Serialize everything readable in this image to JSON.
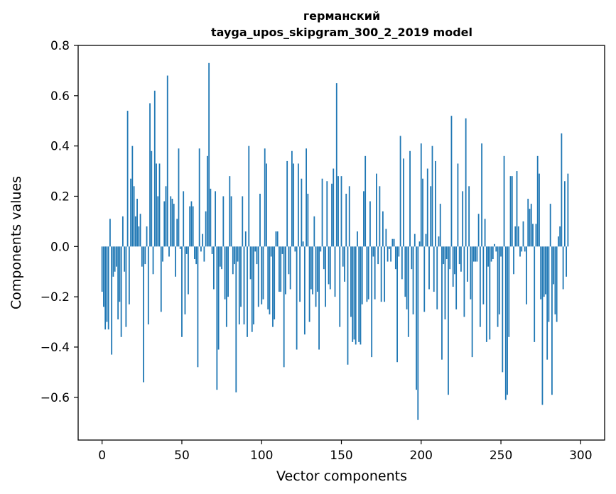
{
  "chart_data": {
    "type": "bar",
    "title": "германский",
    "subtitle": "tayga_upos_skipgram_300_2_2019 model",
    "xlabel": "Vector components",
    "ylabel": "Components values",
    "xlim": [
      -15,
      315
    ],
    "ylim": [
      -0.77,
      0.8
    ],
    "xticks": [
      0,
      50,
      100,
      150,
      200,
      250,
      300
    ],
    "xtick_labels": [
      "0",
      "50",
      "100",
      "150",
      "200",
      "250",
      "300"
    ],
    "yticks": [
      -0.6,
      -0.4,
      -0.2,
      0.0,
      0.2,
      0.4,
      0.6,
      0.8
    ],
    "ytick_labels": [
      "−0.6",
      "−0.4",
      "−0.2",
      "0.0",
      "0.2",
      "0.4",
      "0.6",
      "0.8"
    ],
    "bar_color": "#1f77b4",
    "values": [
      -0.18,
      -0.24,
      -0.33,
      -0.3,
      -0.33,
      0.11,
      -0.43,
      -0.12,
      -0.1,
      -0.08,
      -0.29,
      -0.22,
      -0.36,
      0.12,
      -0.1,
      -0.32,
      0.54,
      -0.23,
      0.27,
      0.4,
      0.24,
      0.12,
      0.19,
      0.08,
      0.13,
      -0.08,
      -0.54,
      -0.07,
      0.08,
      -0.31,
      0.57,
      0.38,
      -0.11,
      0.62,
      0.33,
      0.2,
      0.33,
      -0.26,
      -0.06,
      0.18,
      0.24,
      0.68,
      -0.04,
      0.2,
      0.19,
      0.17,
      -0.12,
      0.11,
      0.39,
      -0.01,
      -0.36,
      0.22,
      -0.27,
      -0.03,
      -0.19,
      0.16,
      0.18,
      0.16,
      -0.05,
      -0.07,
      -0.48,
      0.39,
      -0.02,
      0.05,
      -0.06,
      0.14,
      0.36,
      0.73,
      0.23,
      -0.03,
      -0.17,
      0.22,
      -0.57,
      -0.41,
      -0.08,
      -0.09,
      0.2,
      -0.21,
      -0.32,
      -0.2,
      0.28,
      0.2,
      -0.11,
      -0.07,
      -0.58,
      -0.06,
      -0.31,
      -0.24,
      0.2,
      -0.31,
      0.06,
      -0.36,
      0.4,
      -0.13,
      -0.34,
      -0.31,
      -0.02,
      -0.07,
      -0.24,
      0.21,
      -0.23,
      -0.21,
      0.39,
      0.33,
      -0.25,
      -0.27,
      -0.04,
      -0.32,
      -0.29,
      0.06,
      0.06,
      -0.18,
      -0.18,
      -0.03,
      -0.48,
      -0.19,
      0.34,
      -0.11,
      -0.17,
      0.38,
      0.33,
      -0.02,
      -0.41,
      0.33,
      -0.22,
      0.27,
      0.02,
      -0.35,
      0.39,
      0.21,
      -0.3,
      -0.17,
      -0.19,
      0.12,
      -0.24,
      -0.18,
      -0.41,
      -0.02,
      0.27,
      -0.09,
      -0.24,
      0.26,
      -0.15,
      -0.17,
      0.25,
      0.31,
      -0.2,
      0.65,
      0.28,
      -0.32,
      0.28,
      -0.08,
      -0.14,
      0.21,
      -0.47,
      0.24,
      -0.28,
      -0.38,
      -0.37,
      -0.39,
      0.06,
      -0.38,
      -0.39,
      -0.23,
      0.22,
      0.36,
      -0.22,
      -0.21,
      0.18,
      -0.44,
      -0.04,
      -0.21,
      0.29,
      -0.07,
      0.24,
      -0.22,
      0.14,
      -0.22,
      0.07,
      -0.06,
      -0.01,
      -0.06,
      0.03,
      0.03,
      -0.09,
      -0.46,
      -0.04,
      0.44,
      -0.13,
      0.35,
      -0.2,
      -0.25,
      -0.36,
      0.38,
      -0.09,
      -0.27,
      0.05,
      -0.57,
      -0.69,
      0.02,
      0.41,
      0.27,
      -0.26,
      0.05,
      0.31,
      -0.17,
      0.24,
      0.4,
      -0.18,
      0.34,
      -0.25,
      0.04,
      0.17,
      -0.45,
      -0.07,
      -0.29,
      -0.05,
      -0.59,
      -0.09,
      0.52,
      -0.16,
      -0.11,
      -0.25,
      0.33,
      -0.07,
      -0.1,
      0.22,
      -0.28,
      0.51,
      -0.14,
      0.24,
      -0.21,
      -0.44,
      -0.06,
      -0.06,
      -0.06,
      0.13,
      -0.32,
      0.41,
      -0.23,
      0.11,
      -0.38,
      -0.08,
      -0.37,
      -0.06,
      -0.05,
      0.01,
      -0.02,
      -0.32,
      -0.27,
      -0.04,
      -0.5,
      0.36,
      -0.61,
      -0.59,
      -0.36,
      0.28,
      0.28,
      -0.11,
      0.08,
      0.3,
      0.08,
      -0.04,
      -0.02,
      0.1,
      -0.02,
      -0.23,
      0.19,
      0.15,
      0.17,
      0.09,
      -0.38,
      0.09,
      0.36,
      0.29,
      -0.21,
      -0.63,
      -0.2,
      -0.19,
      -0.45,
      -0.3,
      0.17,
      -0.59,
      -0.15,
      -0.27,
      -0.3,
      0.04,
      0.08,
      0.45,
      -0.17,
      0.26,
      -0.12,
      0.29
    ]
  }
}
